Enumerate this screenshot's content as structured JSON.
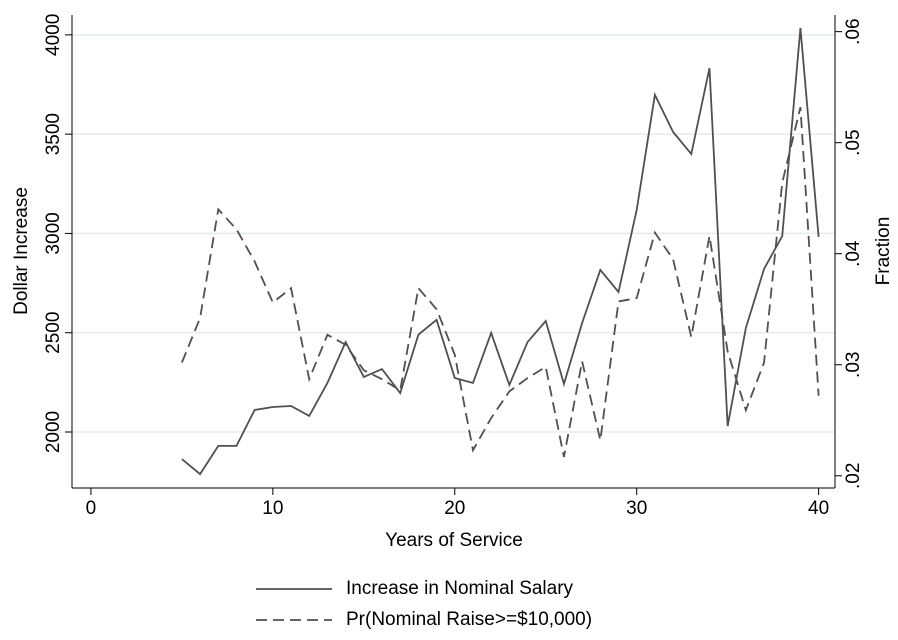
{
  "chart_data": {
    "type": "line",
    "x_label": "Years of Service",
    "y_label": "Dollar Increase",
    "y2_label": "Fraction",
    "x": [
      5,
      6,
      7,
      8,
      9,
      10,
      11,
      12,
      13,
      14,
      15,
      16,
      17,
      18,
      19,
      20,
      21,
      22,
      23,
      24,
      25,
      26,
      27,
      28,
      29,
      30,
      31,
      32,
      33,
      34,
      35,
      36,
      37,
      38,
      39,
      40
    ],
    "series": [
      {
        "name": "Increase in Nominal Salary",
        "color": "#505050",
        "line_style": "solid",
        "values": [
          1864,
          1788,
          1930,
          1930,
          2111,
          2126,
          2131,
          2081,
          2247,
          2453,
          2277,
          2317,
          2196,
          2490,
          2565,
          2272,
          2247,
          2499,
          2237,
          2453,
          2559,
          2242,
          2549,
          2816,
          2705,
          3118,
          3698,
          3511,
          3400,
          3833,
          2030,
          2524,
          2821,
          2987,
          4035,
          2982
        ]
      },
      {
        "name": "Pr(Nominal Raise>=$10,000)",
        "color": "#505050",
        "line_style": "dashed",
        "axis": "y2",
        "values": [
          0.0302,
          0.0342,
          0.044,
          0.0422,
          0.0393,
          0.0356,
          0.0369,
          0.0287,
          0.0327,
          0.0318,
          0.0295,
          0.0287,
          0.0277,
          0.0369,
          0.035,
          0.0309,
          0.0223,
          0.0252,
          0.0276,
          0.0288,
          0.0298,
          0.0217,
          0.0303,
          0.0232,
          0.0357,
          0.036,
          0.0419,
          0.0395,
          0.0325,
          0.0416,
          0.0312,
          0.0259,
          0.0302,
          0.0464,
          0.0532,
          0.0272
        ]
      }
    ],
    "xlim": [
      -1.04,
      40.9
    ],
    "xticks": [
      0,
      10,
      20,
      30,
      40
    ],
    "ylim": [
      1718,
      4100
    ],
    "yticks": [
      2000,
      2500,
      3000,
      3500,
      4000
    ],
    "y2lim": [
      0.0189,
      0.0615
    ],
    "y2ticks": [
      {
        "value": 0.02,
        "label": ".02"
      },
      {
        "value": 0.03,
        "label": ".03"
      },
      {
        "value": 0.04,
        "label": ".04"
      },
      {
        "value": 0.05,
        "label": ".05"
      },
      {
        "value": 0.06,
        "label": ".06"
      }
    ],
    "grid": true,
    "legend": "bottom"
  }
}
